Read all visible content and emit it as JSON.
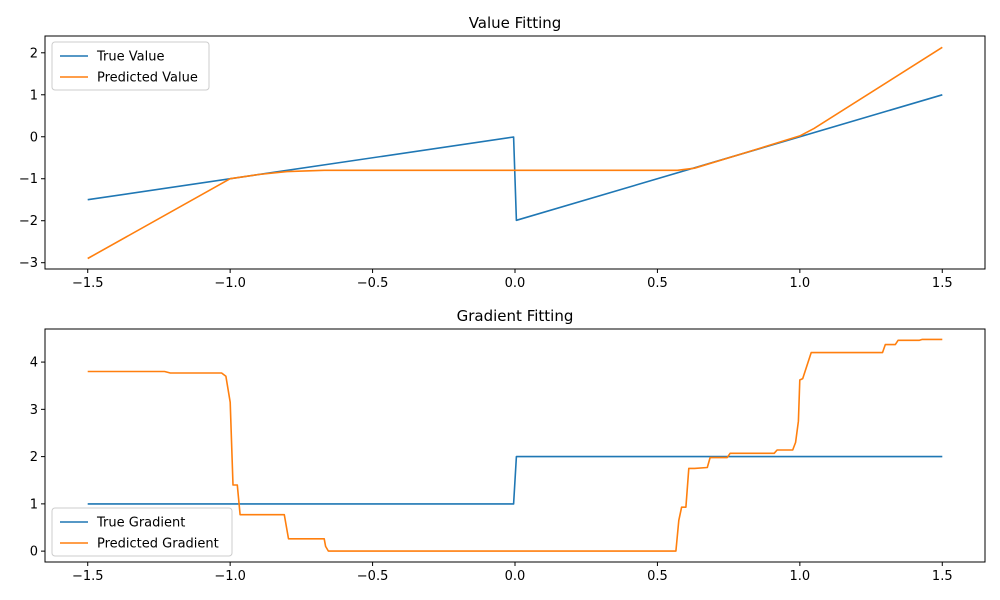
{
  "chart_data": [
    {
      "type": "line",
      "title": "Value Fitting",
      "xlabel": "",
      "ylabel": "",
      "xlim": [
        -1.65,
        1.65
      ],
      "ylim": [
        -3.15,
        2.4
      ],
      "x_ticks": [
        -1.5,
        -1.0,
        -0.5,
        0.0,
        0.5,
        1.0,
        1.5
      ],
      "x_tick_labels": [
        "−1.5",
        "−1.0",
        "−0.5",
        "0.0",
        "0.5",
        "1.0",
        "1.5"
      ],
      "y_ticks": [
        -3,
        -2,
        -1,
        0,
        1,
        2
      ],
      "y_tick_labels": [
        "−3",
        "−2",
        "−1",
        "0",
        "1",
        "2"
      ],
      "grid": false,
      "legend": "top-left",
      "series": [
        {
          "name": "True Value",
          "color": "#1f77b4",
          "x": [
            -1.5,
            -0.005,
            0.005,
            1.5
          ],
          "y": [
            -1.5,
            -0.005,
            -1.99,
            1.0
          ]
        },
        {
          "name": "Predicted Value",
          "color": "#ff7f0e",
          "x": [
            -1.5,
            -1.0,
            -0.9,
            -0.8,
            -0.67,
            0.0,
            0.57,
            0.63,
            0.8,
            1.0,
            1.05,
            1.5
          ],
          "y": [
            -2.9,
            -1.0,
            -0.9,
            -0.83,
            -0.8,
            -0.8,
            -0.8,
            -0.75,
            -0.4,
            0.02,
            0.2,
            2.13
          ]
        }
      ]
    },
    {
      "type": "line",
      "title": "Gradient Fitting",
      "xlabel": "",
      "ylabel": "",
      "xlim": [
        -1.65,
        1.65
      ],
      "ylim": [
        -0.23,
        4.7
      ],
      "x_ticks": [
        -1.5,
        -1.0,
        -0.5,
        0.0,
        0.5,
        1.0,
        1.5
      ],
      "x_tick_labels": [
        "−1.5",
        "−1.0",
        "−0.5",
        "0.0",
        "0.5",
        "1.0",
        "1.5"
      ],
      "y_ticks": [
        0,
        1,
        2,
        3,
        4
      ],
      "y_tick_labels": [
        "0",
        "1",
        "2",
        "3",
        "4"
      ],
      "grid": false,
      "legend": "bottom-left",
      "series": [
        {
          "name": "True Gradient",
          "color": "#1f77b4",
          "x": [
            -1.5,
            -0.005,
            0.005,
            1.5
          ],
          "y": [
            1.0,
            1.0,
            2.0,
            2.0
          ]
        },
        {
          "name": "Predicted Gradient",
          "color": "#ff7f0e",
          "x": [
            -1.5,
            -1.23,
            -1.21,
            -1.03,
            -1.015,
            -1.0,
            -0.99,
            -0.975,
            -0.965,
            -0.95,
            -0.81,
            -0.795,
            -0.67,
            -0.665,
            -0.655,
            0.565,
            0.575,
            0.585,
            0.6,
            0.61,
            0.62,
            0.63,
            0.675,
            0.685,
            0.695,
            0.7,
            0.745,
            0.755,
            0.765,
            0.91,
            0.92,
            0.93,
            0.975,
            0.985,
            0.995,
            1.0,
            1.01,
            1.04,
            1.05,
            1.06,
            1.29,
            1.3,
            1.31,
            1.335,
            1.345,
            1.42,
            1.43,
            1.5
          ],
          "y": [
            3.8,
            3.8,
            3.77,
            3.77,
            3.7,
            3.15,
            1.4,
            1.4,
            0.77,
            0.77,
            0.77,
            0.26,
            0.26,
            0.1,
            0.0,
            0.0,
            0.65,
            0.93,
            0.93,
            1.75,
            1.75,
            1.75,
            1.77,
            1.98,
            1.98,
            1.98,
            1.98,
            2.07,
            2.07,
            2.07,
            2.14,
            2.14,
            2.14,
            2.3,
            2.75,
            3.62,
            3.65,
            4.2,
            4.2,
            4.2,
            4.2,
            4.37,
            4.37,
            4.37,
            4.46,
            4.46,
            4.48,
            4.48
          ]
        }
      ]
    }
  ]
}
